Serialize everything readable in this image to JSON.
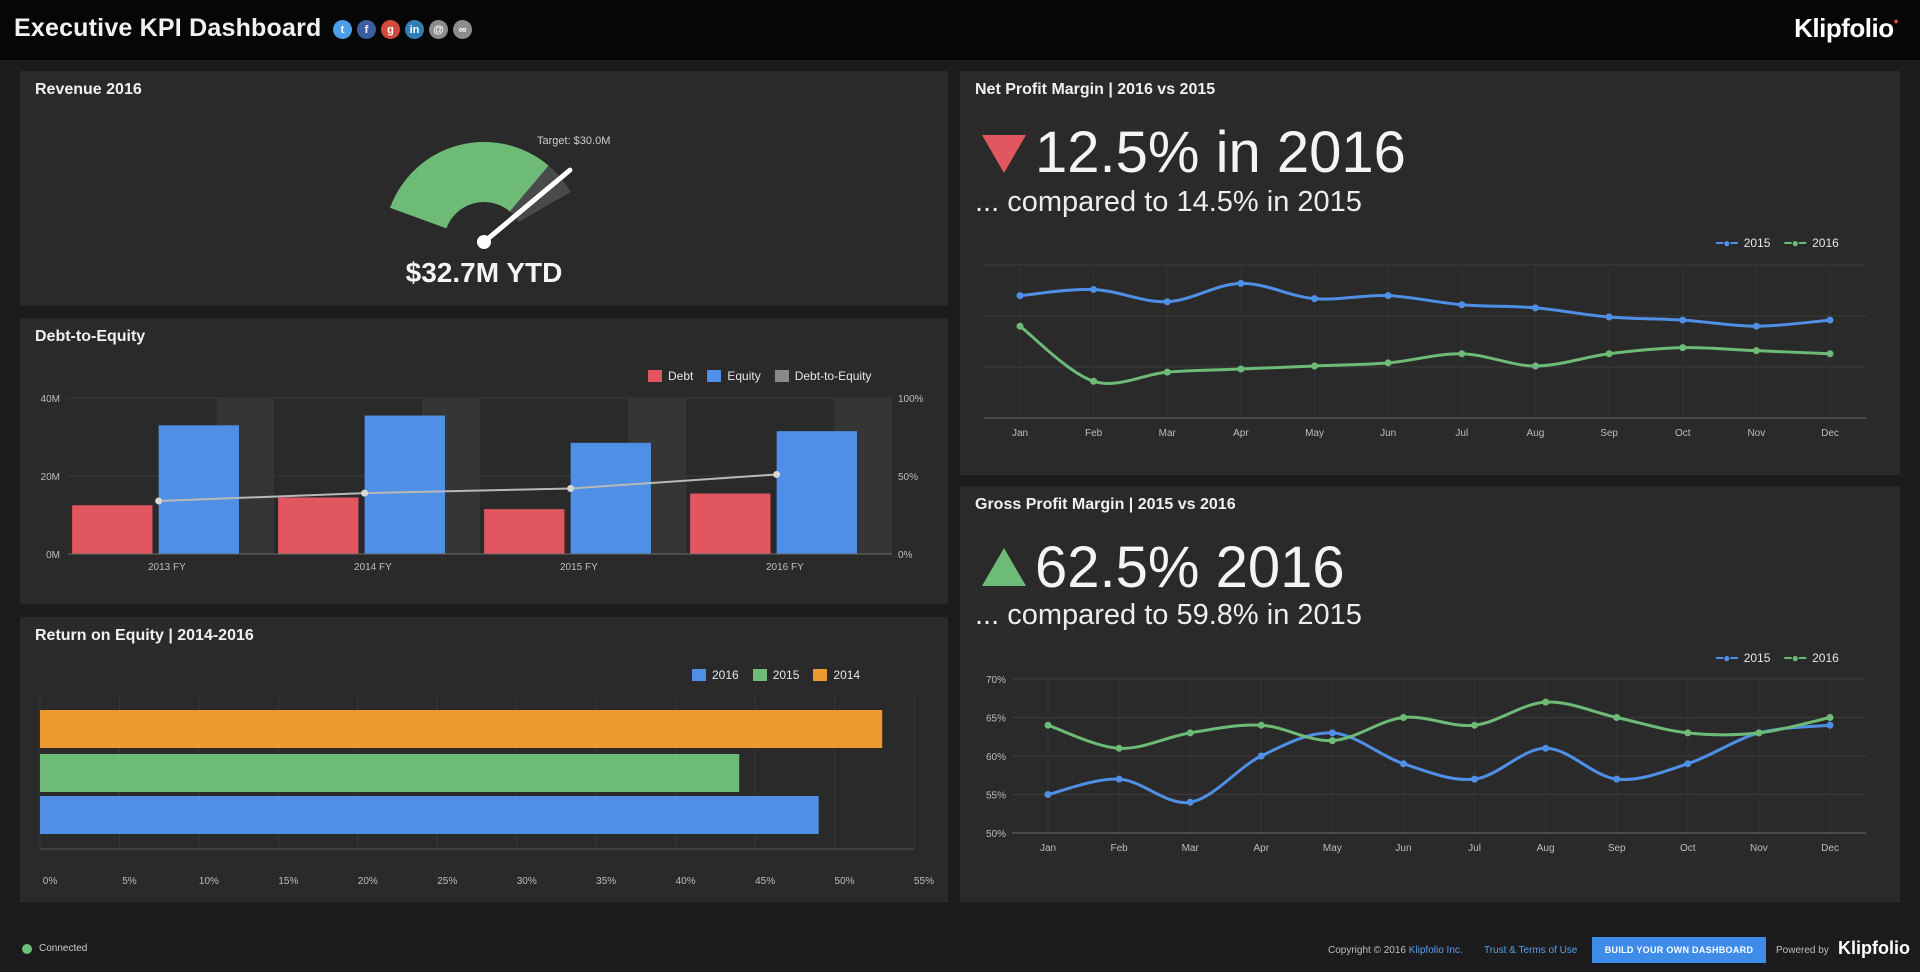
{
  "header": {
    "title": "Executive KPI Dashboard",
    "brand": "Klipfolio",
    "social_icons": [
      "twitter-icon",
      "facebook-icon",
      "google-plus-icon",
      "linkedin-icon",
      "email-icon",
      "link-icon"
    ]
  },
  "revenue": {
    "title": "Revenue 2016",
    "value_label": "$32.7M YTD",
    "target_label": "Target: $30.0M",
    "chart_data": {
      "type": "gauge",
      "value": 32.7,
      "target": 30.0,
      "unit": "$M"
    }
  },
  "debt_equity": {
    "title": "Debt-to-Equity",
    "legend": [
      "Debt",
      "Equity",
      "Debt-to-Equity"
    ],
    "chart_data": {
      "type": "bar",
      "categories": [
        "2013 FY",
        "2014 FY",
        "2015 FY",
        "2016 FY"
      ],
      "series": [
        {
          "name": "Debt",
          "values": [
            12.5,
            14.5,
            11.5,
            15.5
          ],
          "color": "#e25660"
        },
        {
          "name": "Equity",
          "values": [
            33,
            35.5,
            28.5,
            31.5
          ],
          "color": "#4f8fe6"
        },
        {
          "name": "Debt-to-Equity",
          "values": [
            34,
            39,
            42,
            51
          ],
          "color": "#b0b0b0",
          "type": "line"
        }
      ],
      "ylim_left": [
        0,
        40
      ],
      "ylim_right": [
        0,
        100
      ],
      "yticks_left": [
        "40M",
        "20M",
        "0M"
      ],
      "yticks_right": [
        "100%",
        "50%",
        "0%"
      ]
    }
  },
  "roe": {
    "title": "Return on Equity | 2014-2016",
    "legend": [
      "2016",
      "2015",
      "2014"
    ],
    "chart_data": {
      "type": "bar",
      "orientation": "horizontal",
      "series": [
        {
          "name": "2014",
          "value": 53,
          "color": "#ef9a30"
        },
        {
          "name": "2015",
          "value": 44,
          "color": "#6dbb76"
        },
        {
          "name": "2016",
          "value": 49,
          "color": "#4f8fe6"
        }
      ],
      "xticks": [
        "0%",
        "5%",
        "10%",
        "15%",
        "20%",
        "25%",
        "30%",
        "35%",
        "40%",
        "45%",
        "50%",
        "55%"
      ],
      "xlim": [
        0,
        55
      ]
    }
  },
  "net_margin": {
    "title": "Net Profit Margin | 2016 vs 2015",
    "headline": "12.5% in 2016",
    "comparison": "... compared to 14.5% in 2015",
    "legend": [
      "2015",
      "2016"
    ],
    "chart_data": {
      "type": "line",
      "categories": [
        "Jan",
        "Feb",
        "Mar",
        "Apr",
        "May",
        "Jun",
        "Jul",
        "Aug",
        "Sep",
        "Oct",
        "Nov",
        "Dec"
      ],
      "series": [
        {
          "name": "2015",
          "values": [
            15.0,
            15.2,
            14.8,
            15.4,
            14.9,
            15.0,
            14.7,
            14.6,
            14.3,
            14.2,
            14.0,
            14.2
          ],
          "color": "#4f8fe6"
        },
        {
          "name": "2016",
          "values": [
            14.0,
            12.2,
            12.5,
            12.6,
            12.7,
            12.8,
            13.1,
            12.7,
            13.1,
            13.3,
            13.2,
            13.1
          ],
          "color": "#6dbb76"
        }
      ],
      "ylim": [
        11.0,
        16.0
      ]
    }
  },
  "gross_margin": {
    "title": "Gross Profit Margin | 2015 vs 2016",
    "headline": "62.5% 2016",
    "comparison": "... compared to 59.8% in 2015",
    "legend": [
      "2015",
      "2016"
    ],
    "chart_data": {
      "type": "line",
      "categories": [
        "Jan",
        "Feb",
        "Mar",
        "Apr",
        "May",
        "Jun",
        "Jul",
        "Aug",
        "Sep",
        "Oct",
        "Nov",
        "Dec"
      ],
      "series": [
        {
          "name": "2015",
          "values": [
            55,
            57,
            54,
            60,
            63,
            59,
            57,
            61,
            57,
            59,
            63,
            64
          ],
          "color": "#4f8fe6"
        },
        {
          "name": "2016",
          "values": [
            64,
            61,
            63,
            64,
            62,
            65,
            64,
            67,
            65,
            63,
            63,
            65
          ],
          "color": "#6dbb76"
        }
      ],
      "ylim": [
        50,
        70
      ],
      "yticks": [
        "70%",
        "65%",
        "60%",
        "55%",
        "50%"
      ]
    }
  },
  "footer": {
    "status": "Connected",
    "copyright_prefix": "Copyright © 2016",
    "copyright_link": "Klipfolio Inc.",
    "terms": "Trust & Terms of Use",
    "build_button": "BUILD YOUR OWN DASHBOARD",
    "powered_by": "Powered by",
    "brand": "Klipfolio"
  }
}
